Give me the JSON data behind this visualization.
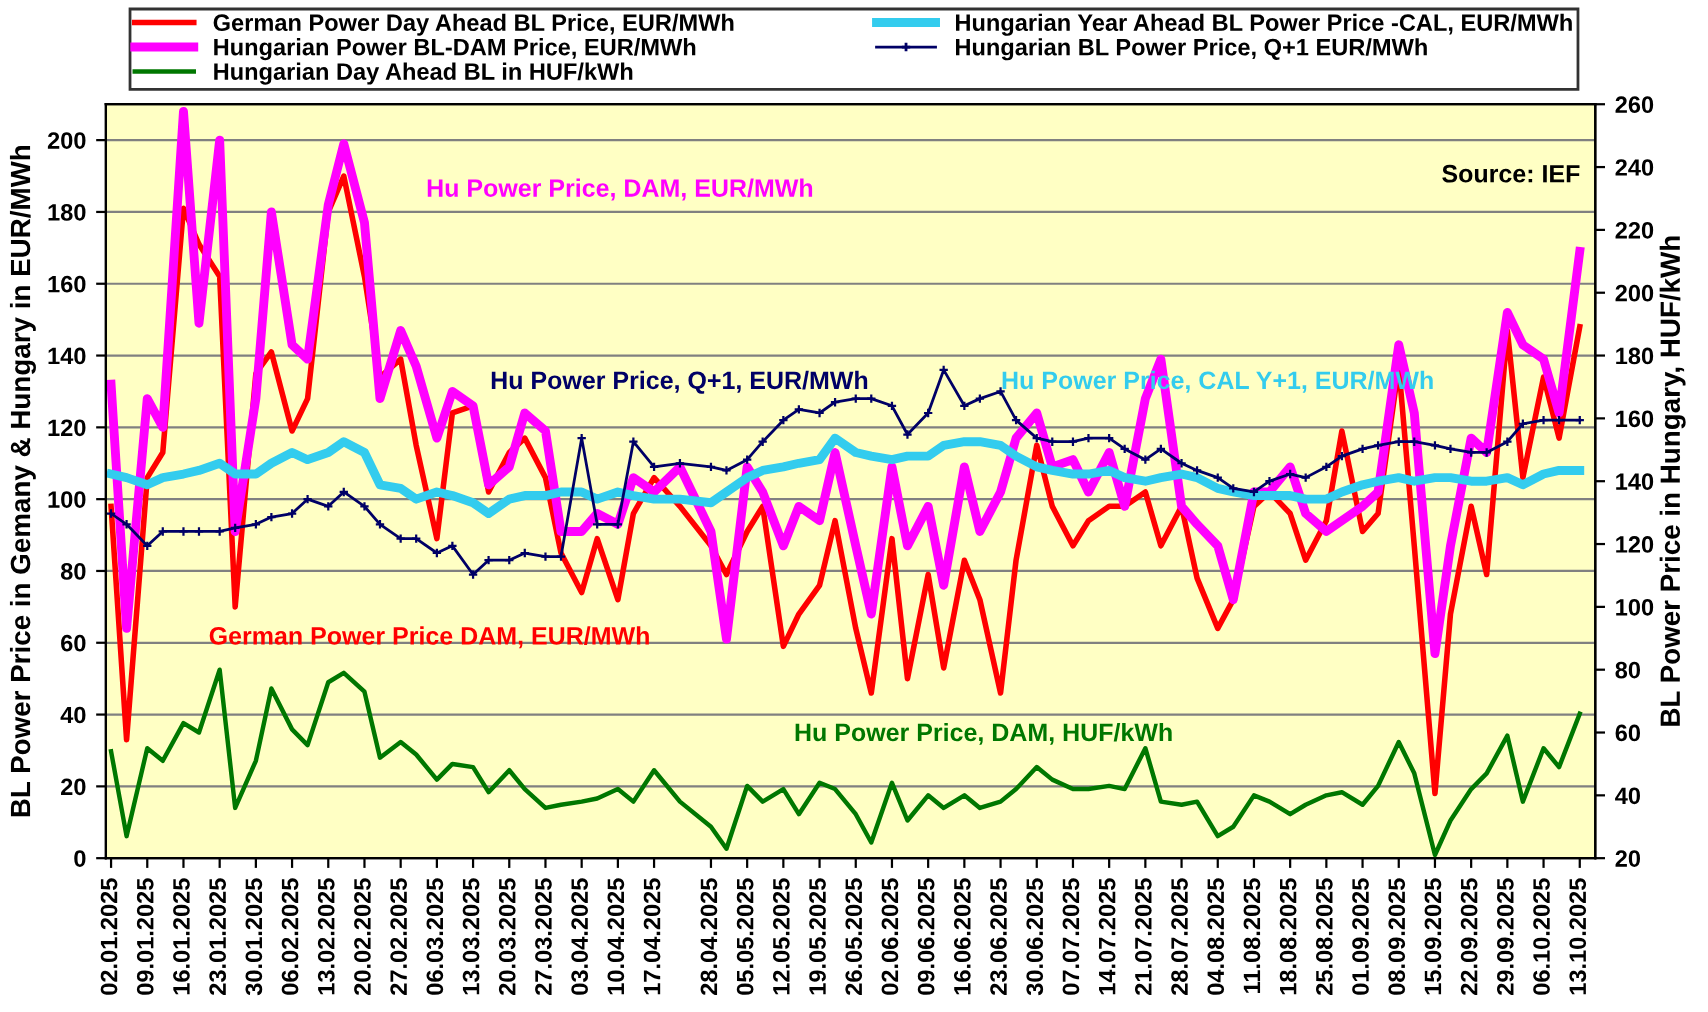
{
  "chart_data": {
    "type": "line",
    "ylabel": "BL Power Price in Gemany & Hungary in EUR/MWh",
    "y2label": "BL Power Price in Hungary, HUF/kWh",
    "x": [
      "2025-01-02",
      "2025-01-05",
      "2025-01-09",
      "2025-01-12",
      "2025-01-16",
      "2025-01-19",
      "2025-01-23",
      "2025-01-26",
      "2025-01-30",
      "2025-02-02",
      "2025-02-06",
      "2025-02-09",
      "2025-02-13",
      "2025-02-16",
      "2025-02-20",
      "2025-02-23",
      "2025-02-27",
      "2025-03-02",
      "2025-03-06",
      "2025-03-09",
      "2025-03-13",
      "2025-03-16",
      "2025-03-20",
      "2025-03-23",
      "2025-03-27",
      "2025-03-30",
      "2025-04-03",
      "2025-04-06",
      "2025-04-10",
      "2025-04-13",
      "2025-04-17",
      "2025-04-22",
      "2025-04-28",
      "2025-05-01",
      "2025-05-05",
      "2025-05-08",
      "2025-05-12",
      "2025-05-15",
      "2025-05-19",
      "2025-05-22",
      "2025-05-26",
      "2025-05-29",
      "2025-06-02",
      "2025-06-05",
      "2025-06-09",
      "2025-06-12",
      "2025-06-16",
      "2025-06-19",
      "2025-06-23",
      "2025-06-26",
      "2025-06-30",
      "2025-07-03",
      "2025-07-07",
      "2025-07-10",
      "2025-07-14",
      "2025-07-17",
      "2025-07-21",
      "2025-07-24",
      "2025-07-28",
      "2025-07-31",
      "2025-08-04",
      "2025-08-07",
      "2025-08-11",
      "2025-08-14",
      "2025-08-18",
      "2025-08-21",
      "2025-08-25",
      "2025-08-28",
      "2025-09-01",
      "2025-09-04",
      "2025-09-08",
      "2025-09-11",
      "2025-09-15",
      "2025-09-18",
      "2025-09-22",
      "2025-09-25",
      "2025-09-29",
      "2025-10-02",
      "2025-10-06",
      "2025-10-09",
      "2025-10-13"
    ],
    "series": [
      {
        "name": "German Power Day Ahead BL Price, EUR/MWh",
        "color": "#ff0000",
        "values": [
          98,
          33,
          106,
          113,
          181,
          171,
          162,
          70,
          135,
          141,
          119,
          128,
          180,
          190,
          162,
          134,
          139,
          115,
          89,
          124,
          126,
          102,
          113,
          117,
          106,
          85,
          74,
          89,
          72,
          96,
          106,
          98,
          87,
          79,
          91,
          98,
          59,
          68,
          76,
          94,
          64,
          46,
          89,
          50,
          79,
          53,
          83,
          72,
          46,
          83,
          115,
          98,
          87,
          94,
          98,
          98,
          102,
          87,
          98,
          78,
          64,
          72,
          98,
          102,
          96,
          83,
          94,
          119,
          91,
          96,
          137,
          87,
          18,
          68,
          98,
          79,
          147,
          106,
          134,
          117,
          148
        ]
      },
      {
        "name": "Hungarian Power BL-DAM Price, EUR/MWh",
        "color": "#ff00ff",
        "values": [
          132,
          64,
          128,
          120,
          208,
          149,
          200,
          91,
          128,
          180,
          143,
          139,
          182,
          199,
          177,
          128,
          147,
          137,
          117,
          130,
          126,
          104,
          109,
          124,
          119,
          91,
          91,
          96,
          93,
          106,
          102,
          109,
          91,
          61,
          109,
          102,
          87,
          98,
          94,
          113,
          87,
          68,
          109,
          87,
          98,
          76,
          109,
          91,
          102,
          117,
          124,
          109,
          111,
          102,
          113,
          98,
          128,
          139,
          98,
          93,
          87,
          72,
          102,
          102,
          109,
          96,
          91,
          94,
          98,
          102,
          143,
          124,
          57,
          87,
          117,
          113,
          152,
          143,
          139,
          124,
          169
        ]
      },
      {
        "name": "Hungarian Day Ahead BL in HUF/kWh",
        "color": "#007700",
        "axis": "y2",
        "values": [
          54,
          27,
          55,
          51,
          63,
          60,
          80,
          36,
          51,
          74,
          61,
          56,
          76,
          79,
          73,
          52,
          57,
          53,
          45,
          50,
          49,
          41,
          48,
          42,
          36,
          37,
          38,
          39,
          42,
          38,
          48,
          38,
          30,
          23,
          43,
          38,
          42,
          34,
          44,
          42,
          34,
          25,
          44,
          32,
          40,
          36,
          40,
          36,
          38,
          42,
          49,
          45,
          42,
          42,
          43,
          42,
          55,
          38,
          37,
          38,
          27,
          30,
          40,
          38,
          34,
          37,
          40,
          41,
          37,
          43,
          57,
          47,
          21,
          32,
          42,
          47,
          59,
          38,
          55,
          49,
          66
        ]
      },
      {
        "name": "Hungarian Year Ahead BL Power Price -CAL, EUR/MWh",
        "color": "#33ccee",
        "values": [
          107,
          106,
          104,
          106,
          107,
          108,
          110,
          107,
          107,
          110,
          113,
          111,
          113,
          116,
          113,
          104,
          103,
          100,
          102,
          101,
          99,
          96,
          100,
          101,
          101,
          102,
          102,
          100,
          102,
          101,
          100,
          100,
          99,
          102,
          106,
          108,
          109,
          110,
          111,
          117,
          113,
          112,
          111,
          112,
          112,
          115,
          116,
          116,
          115,
          112,
          109,
          108,
          107,
          107,
          108,
          106,
          105,
          106,
          107,
          106,
          103,
          102,
          101,
          101,
          101,
          100,
          100,
          102,
          104,
          105,
          106,
          105,
          106,
          106,
          105,
          105,
          106,
          104,
          107,
          108,
          108
        ]
      },
      {
        "name": "Hungarian BL Power Price, Q+1 EUR/MWh",
        "color": "#000066",
        "marker": "cross",
        "values": [
          96,
          93,
          87,
          91,
          91,
          91,
          91,
          92,
          93,
          95,
          96,
          100,
          98,
          102,
          98,
          93,
          89,
          89,
          85,
          87,
          79,
          83,
          83,
          85,
          84,
          84,
          117,
          93,
          93,
          116,
          109,
          110,
          109,
          108,
          111,
          116,
          122,
          125,
          124,
          127,
          128,
          128,
          126,
          118,
          124,
          136,
          126,
          128,
          130,
          122,
          117,
          116,
          116,
          117,
          117,
          114,
          111,
          114,
          110,
          108,
          106,
          103,
          102,
          105,
          107,
          106,
          109,
          112,
          114,
          115,
          116,
          116,
          115,
          114,
          113,
          113,
          116,
          121,
          122,
          122,
          122
        ]
      }
    ],
    "xlim": [
      "2025-01-01",
      "2025-10-16"
    ],
    "xticks": [
      {
        "value": "2025-01-02",
        "label": "02.01.2025"
      },
      {
        "value": "2025-01-09",
        "label": "09.01.2025"
      },
      {
        "value": "2025-01-16",
        "label": "16.01.2025"
      },
      {
        "value": "2025-01-23",
        "label": "23.01.2025"
      },
      {
        "value": "2025-01-30",
        "label": "30.01.2025"
      },
      {
        "value": "2025-02-06",
        "label": "06.02.2025"
      },
      {
        "value": "2025-02-13",
        "label": "13.02.2025"
      },
      {
        "value": "2025-02-20",
        "label": "20.02.2025"
      },
      {
        "value": "2025-02-27",
        "label": "27.02.2025"
      },
      {
        "value": "2025-03-06",
        "label": "06.03.2025"
      },
      {
        "value": "2025-03-13",
        "label": "13.03.2025"
      },
      {
        "value": "2025-03-20",
        "label": "20.03.2025"
      },
      {
        "value": "2025-03-27",
        "label": "27.03.2025"
      },
      {
        "value": "2025-04-03",
        "label": "03.04.2025"
      },
      {
        "value": "2025-04-10",
        "label": "10.04.2025"
      },
      {
        "value": "2025-04-17",
        "label": "17.04.2025"
      },
      {
        "value": "2025-04-28",
        "label": "28.04.2025"
      },
      {
        "value": "2025-05-05",
        "label": "05.05.2025"
      },
      {
        "value": "2025-05-12",
        "label": "12.05.2025"
      },
      {
        "value": "2025-05-19",
        "label": "19.05.2025"
      },
      {
        "value": "2025-05-26",
        "label": "26.05.2025"
      },
      {
        "value": "2025-06-02",
        "label": "02.06.2025"
      },
      {
        "value": "2025-06-09",
        "label": "09.06.2025"
      },
      {
        "value": "2025-06-16",
        "label": "16.06.2025"
      },
      {
        "value": "2025-06-23",
        "label": "23.06.2025"
      },
      {
        "value": "2025-06-30",
        "label": "30.06.2025"
      },
      {
        "value": "2025-07-07",
        "label": "07.07.2025"
      },
      {
        "value": "2025-07-14",
        "label": "14.07.2025"
      },
      {
        "value": "2025-07-21",
        "label": "21.07.2025"
      },
      {
        "value": "2025-07-28",
        "label": "28.07.2025"
      },
      {
        "value": "2025-08-04",
        "label": "04.08.2025"
      },
      {
        "value": "2025-08-11",
        "label": "11.08.2025"
      },
      {
        "value": "2025-08-18",
        "label": "18.08.2025"
      },
      {
        "value": "2025-08-25",
        "label": "25.08.2025"
      },
      {
        "value": "2025-09-01",
        "label": "01.09.2025"
      },
      {
        "value": "2025-09-08",
        "label": "08.09.2025"
      },
      {
        "value": "2025-09-15",
        "label": "15.09.2025"
      },
      {
        "value": "2025-09-22",
        "label": "22.09.2025"
      },
      {
        "value": "2025-09-29",
        "label": "29.09.2025"
      },
      {
        "value": "2025-10-06",
        "label": "06.10.2025"
      },
      {
        "value": "2025-10-13",
        "label": "13.10.2025"
      }
    ],
    "ylim": [
      0,
      210
    ],
    "yticks": [
      0,
      20,
      40,
      60,
      80,
      100,
      120,
      140,
      160,
      180,
      200
    ],
    "y2lim": [
      20,
      260
    ],
    "y2ticks": [
      20,
      40,
      60,
      80,
      100,
      120,
      140,
      160,
      180,
      200,
      220,
      240,
      260
    ],
    "annotations": [
      "German Power Price DAM, EUR/MWh",
      "Hu Power Price, DAM, EUR/MWh",
      "Hu Power Price, DAM, HUF/kWh",
      "Hu Power Price, CAL Y+1, EUR/MWh",
      "Hu Power Price, Q+1, EUR/MWh",
      "Source: IEF"
    ],
    "grid": "y",
    "legend": "top"
  }
}
